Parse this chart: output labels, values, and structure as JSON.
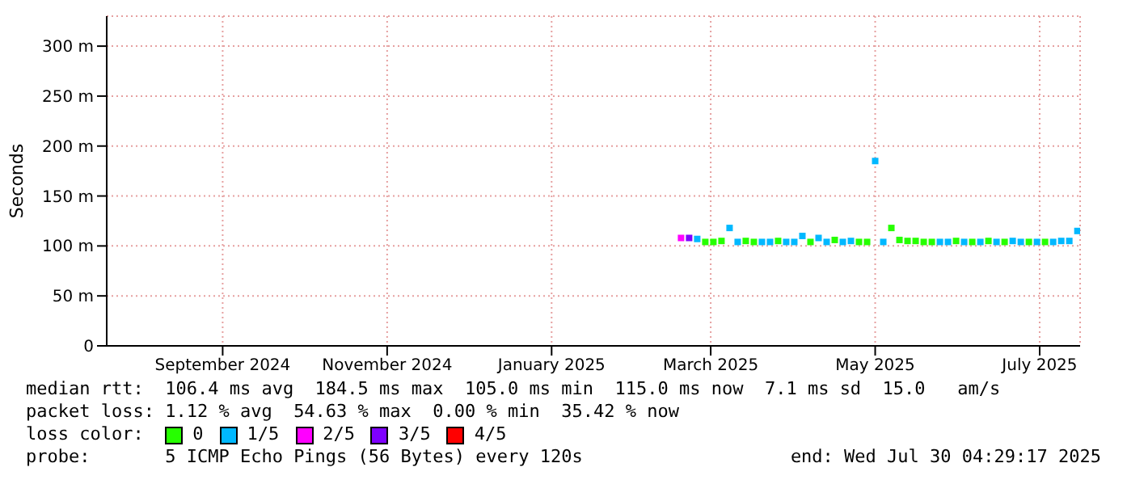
{
  "chart_data": {
    "type": "scatter",
    "ylabel": "Seconds",
    "marker": "square",
    "series": [
      {
        "name": "0",
        "color": "#26ff00",
        "x": [
          "2025-03-13",
          "2025-03-16",
          "2025-03-19",
          "2025-03-28",
          "2025-03-31",
          "2025-04-09",
          "2025-04-21",
          "2025-04-30",
          "2025-05-09",
          "2025-05-12",
          "2025-05-21",
          "2025-05-24",
          "2025-05-27",
          "2025-05-30",
          "2025-06-02",
          "2025-06-05",
          "2025-06-14",
          "2025-06-20",
          "2025-06-26",
          "2025-07-02",
          "2025-07-11",
          "2025-07-17"
        ],
        "values": [
          104,
          104,
          105,
          105,
          104,
          105,
          104,
          106,
          104,
          104,
          118,
          106,
          105,
          105,
          104,
          104,
          105,
          104,
          105,
          104,
          104,
          104
        ]
      },
      {
        "name": "1/5",
        "color": "#00b8ff",
        "x": [
          "2025-03-10",
          "2025-03-22",
          "2025-03-25",
          "2025-04-03",
          "2025-04-06",
          "2025-04-12",
          "2025-04-15",
          "2025-04-18",
          "2025-04-24",
          "2025-04-27",
          "2025-05-03",
          "2025-05-06",
          "2025-05-15",
          "2025-05-18",
          "2025-06-08",
          "2025-06-11",
          "2025-06-17",
          "2025-06-23",
          "2025-06-29",
          "2025-07-05",
          "2025-07-08",
          "2025-07-14",
          "2025-07-20",
          "2025-07-23",
          "2025-07-26",
          "2025-07-29"
        ],
        "values": [
          107,
          118,
          104,
          104,
          104,
          104,
          104,
          110,
          108,
          104,
          104,
          105,
          185,
          104,
          104,
          104,
          104,
          104,
          104,
          105,
          104,
          104,
          104,
          105,
          105,
          115
        ]
      },
      {
        "name": "2/5",
        "color": "#ff00ff",
        "x": [
          "2025-03-04"
        ],
        "values": [
          108
        ]
      },
      {
        "name": "3/5",
        "color": "#7e00ff",
        "x": [
          "2025-03-07"
        ],
        "values": [
          108
        ]
      },
      {
        "name": "4/5",
        "color": "#ff0000"
      }
    ],
    "legend": "bottom",
    "legend_title": "loss color:",
    "xlim": [
      "2024-08-03",
      "2025-07-30"
    ],
    "xticks": [
      {
        "value": "2024-09-15",
        "label": "September 2024"
      },
      {
        "value": "2024-11-15",
        "label": "November 2024"
      },
      {
        "value": "2025-01-15",
        "label": "January 2025"
      },
      {
        "value": "2025-03-15",
        "label": "March 2025"
      },
      {
        "value": "2025-05-15",
        "label": "May 2025"
      },
      {
        "value": "2025-07-15",
        "label": "July 2025"
      }
    ],
    "ylim": [
      0,
      330
    ],
    "yticks": [
      0,
      {
        "value": 50,
        "label": "50 m"
      },
      {
        "value": 100,
        "label": "100 m"
      },
      {
        "value": 150,
        "label": "150 m"
      },
      {
        "value": 200,
        "label": "200 m"
      },
      {
        "value": 250,
        "label": "250 m"
      },
      {
        "value": 300,
        "label": "300 m"
      }
    ],
    "grid": true,
    "annotations": [
      "median rtt:  106.4 ms avg  184.5 ms max  105.0 ms min  115.0 ms now  7.1 ms sd  15.0   am/s",
      "packet loss: 1.12 % avg  54.63 % max  0.00 % min  35.42 % now",
      "probe:       5 ICMP Echo Pings (56 Bytes) every 120s",
      "end: Wed Jul 30 04:29:17 2025"
    ]
  }
}
